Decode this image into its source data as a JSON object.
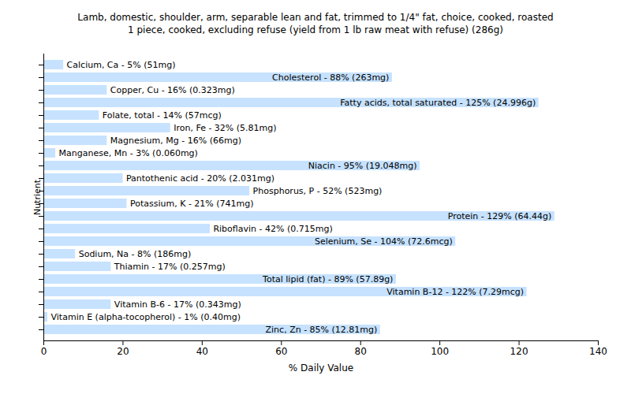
{
  "chart_data": {
    "type": "bar",
    "orientation": "horizontal",
    "title": "Lamb, domestic, shoulder, arm, separable lean and fat, trimmed to 1/4\" fat, choice, cooked, roasted",
    "subtitle": "1 piece, cooked, excluding refuse (yield from 1 lb raw meat with refuse) (286g)",
    "x_label": "% Daily Value",
    "y_label": "Nutrient",
    "categories": [
      "Calcium, Ca",
      "Cholesterol",
      "Copper, Cu",
      "Fatty acids, total saturated",
      "Folate, total",
      "Iron, Fe",
      "Magnesium, Mg",
      "Manganese, Mn",
      "Niacin",
      "Pantothenic acid",
      "Phosphorus, P",
      "Potassium, K",
      "Protein",
      "Riboflavin",
      "Selenium, Se",
      "Sodium, Na",
      "Thiamin",
      "Total lipid (fat)",
      "Vitamin B-12",
      "Vitamin B-6",
      "Vitamin E (alpha-tocopherol)",
      "Zinc, Zn"
    ],
    "values": [
      5,
      88,
      16,
      125,
      14,
      32,
      16,
      3,
      95,
      20,
      52,
      21,
      129,
      42,
      104,
      8,
      17,
      89,
      122,
      17,
      1,
      85
    ],
    "value_labels": [
      "Calcium, Ca - 5% (51mg)",
      "Cholesterol - 88% (263mg)",
      "Copper, Cu - 16% (0.323mg)",
      "Fatty acids, total saturated - 125% (24.996g)",
      "Folate, total - 14% (57mcg)",
      "Iron, Fe - 32% (5.81mg)",
      "Magnesium, Mg - 16% (66mg)",
      "Manganese, Mn - 3% (0.060mg)",
      "Niacin - 95% (19.048mg)",
      "Pantothenic acid - 20% (2.031mg)",
      "Phosphorus, P - 52% (523mg)",
      "Potassium, K - 21% (741mg)",
      "Protein - 129% (64.44g)",
      "Riboflavin - 42% (0.715mg)",
      "Selenium, Se - 104% (72.6mcg)",
      "Sodium, Na - 8% (186mg)",
      "Thiamin - 17% (0.257mg)",
      "Total lipid (fat) - 89% (57.89g)",
      "Vitamin B-12 - 122% (7.29mcg)",
      "Vitamin B-6 - 17% (0.343mg)",
      "Vitamin E (alpha-tocopherol) - 1% (0.40mg)",
      "Zinc, Zn - 85% (12.81mg)"
    ],
    "data_labels": true,
    "color": "#c6e2ff",
    "xlim": [
      0,
      140
    ],
    "xticks": [
      0,
      20,
      40,
      60,
      80,
      100,
      120,
      140
    ],
    "grid": false,
    "tick_labels": "x"
  }
}
